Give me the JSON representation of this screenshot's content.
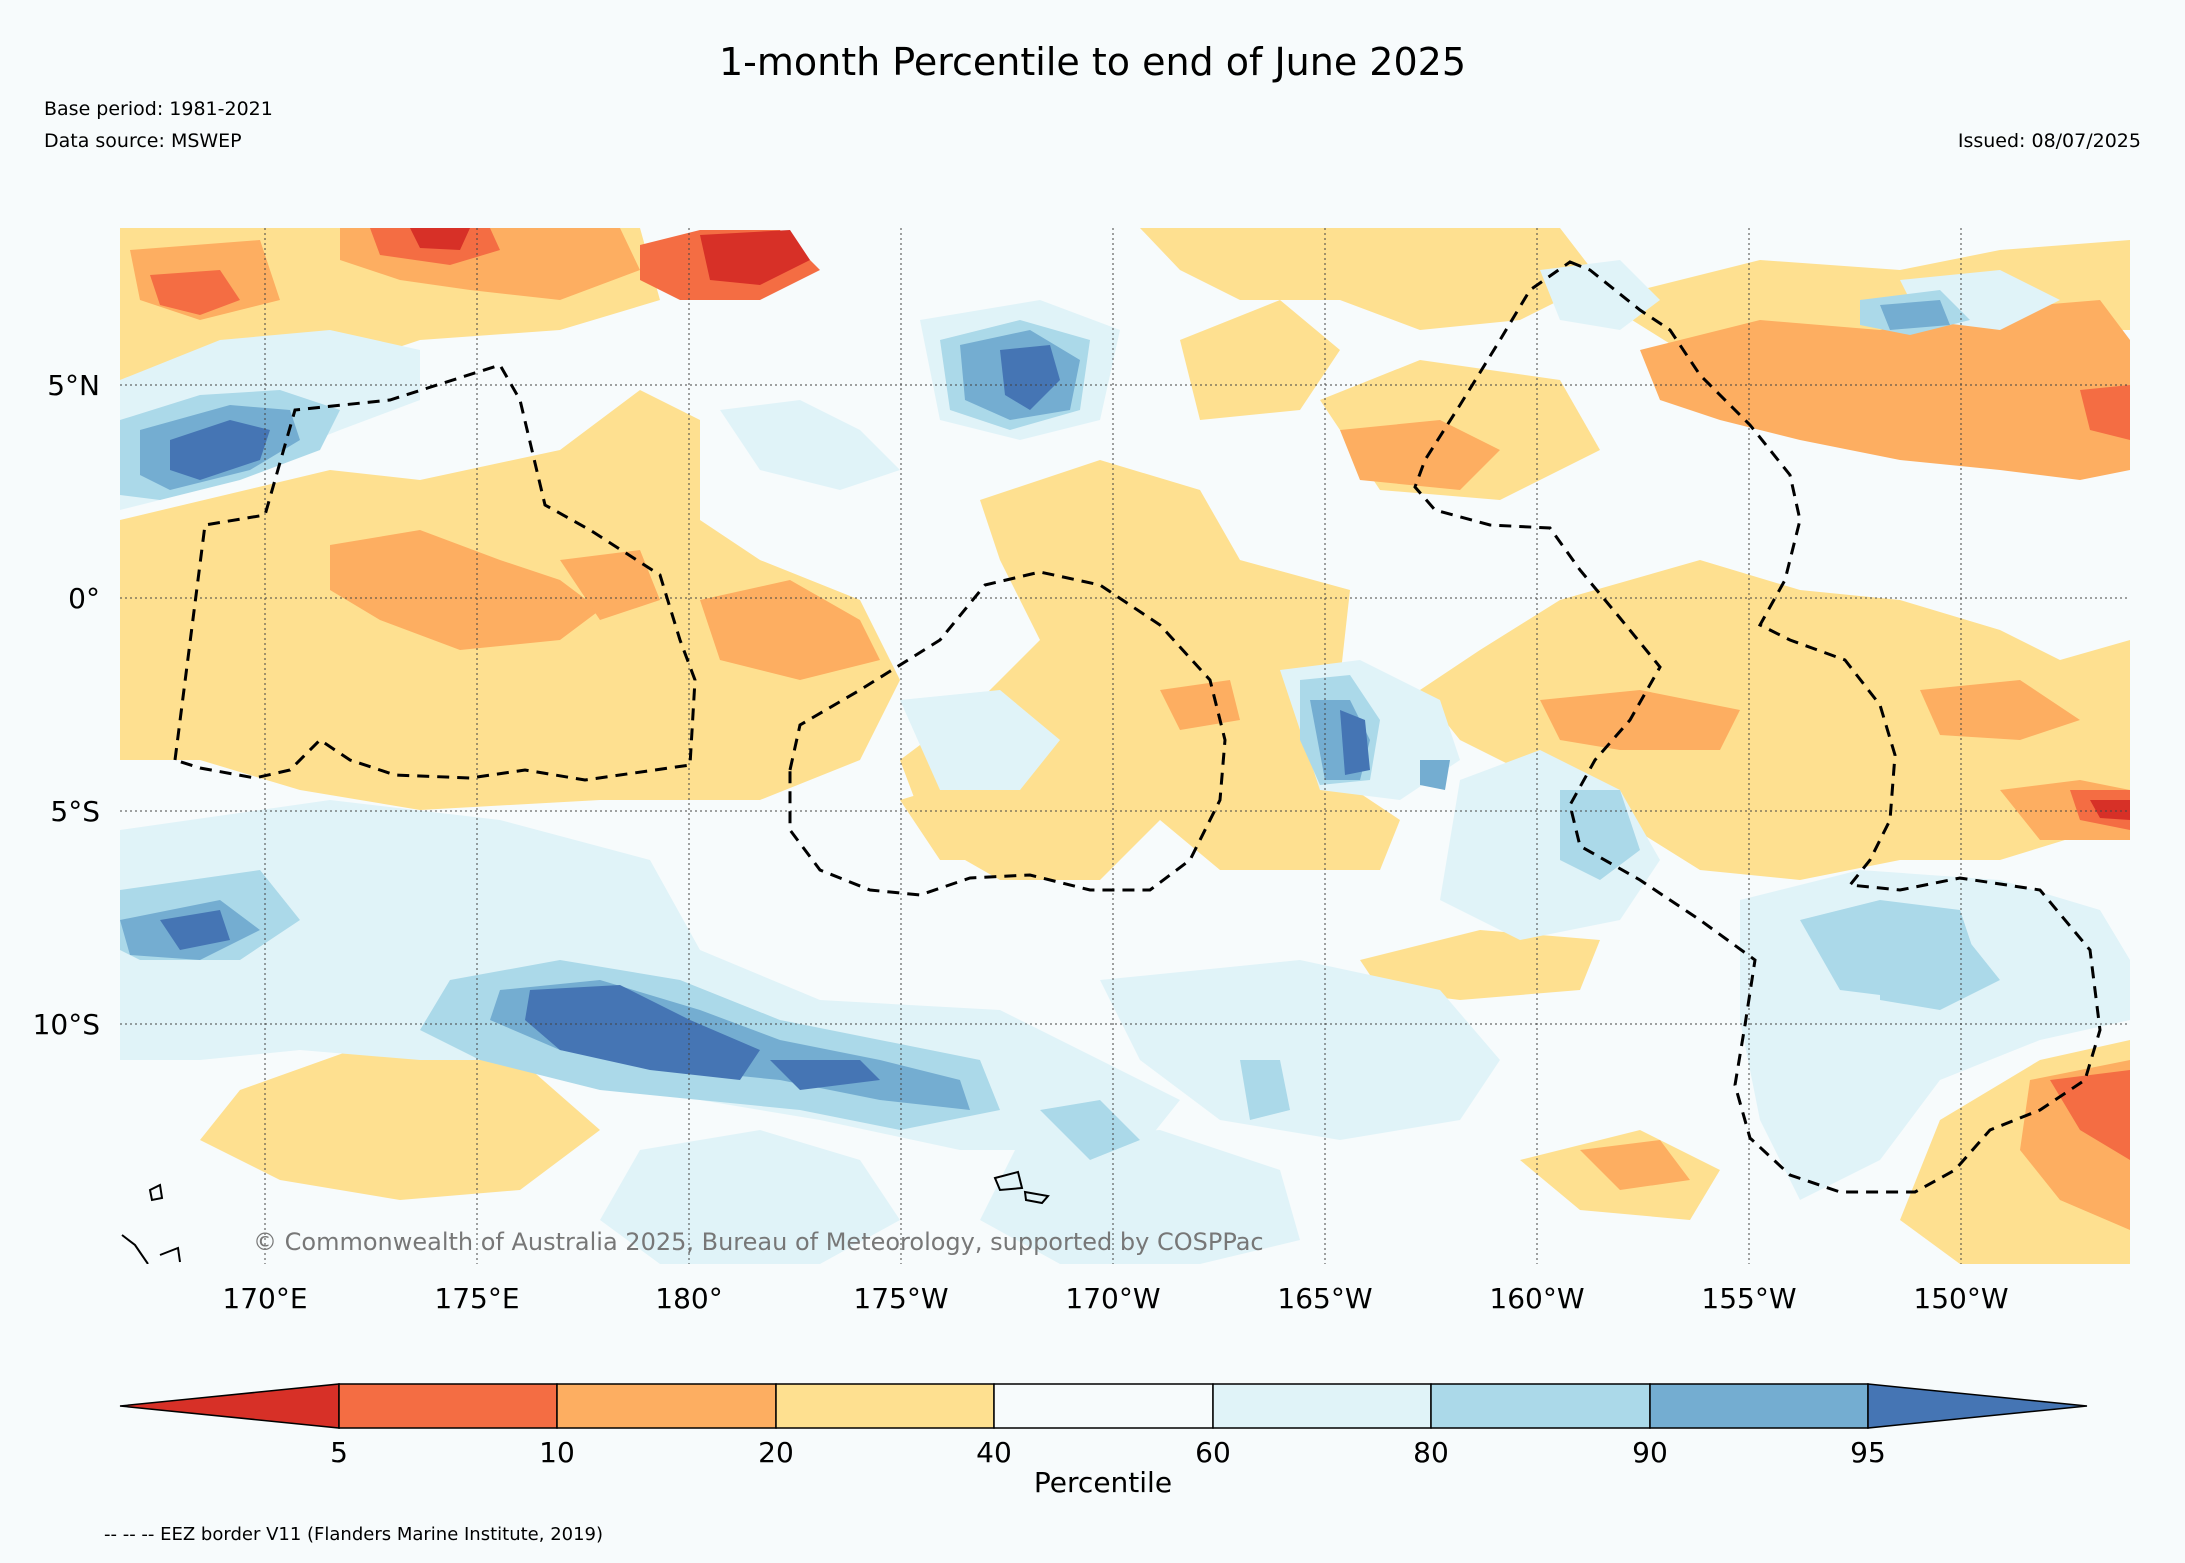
{
  "header": {
    "title": "1-month Percentile to end of June 2025",
    "base_period": "Base period: 1981-2021",
    "data_source": "Data source: MSWEP",
    "issued": "Issued: 08/07/2025"
  },
  "map": {
    "lat_ticks": [
      "5°N",
      "0°",
      "5°S",
      "10°S"
    ],
    "lon_ticks": [
      "170°E",
      "175°E",
      "180°",
      "175°W",
      "170°W",
      "165°W",
      "160°W",
      "155°W",
      "150°W"
    ],
    "copyright": "© Commonwealth of Australia 2025, Bureau of Meteorology, supported by COSPPac"
  },
  "colorbar": {
    "title": "Percentile",
    "labels": [
      "5",
      "10",
      "20",
      "40",
      "60",
      "80",
      "90",
      "95"
    ],
    "colors": [
      "#d73027",
      "#f46d43",
      "#fdae61",
      "#fee090",
      "#f7fbfc",
      "#e0f3f8",
      "#abd9e9",
      "#74add1",
      "#4575b4"
    ]
  },
  "footer": {
    "eez_note": "-- -- -- EEZ border V11 (Flanders Marine Institute, 2019)"
  }
}
